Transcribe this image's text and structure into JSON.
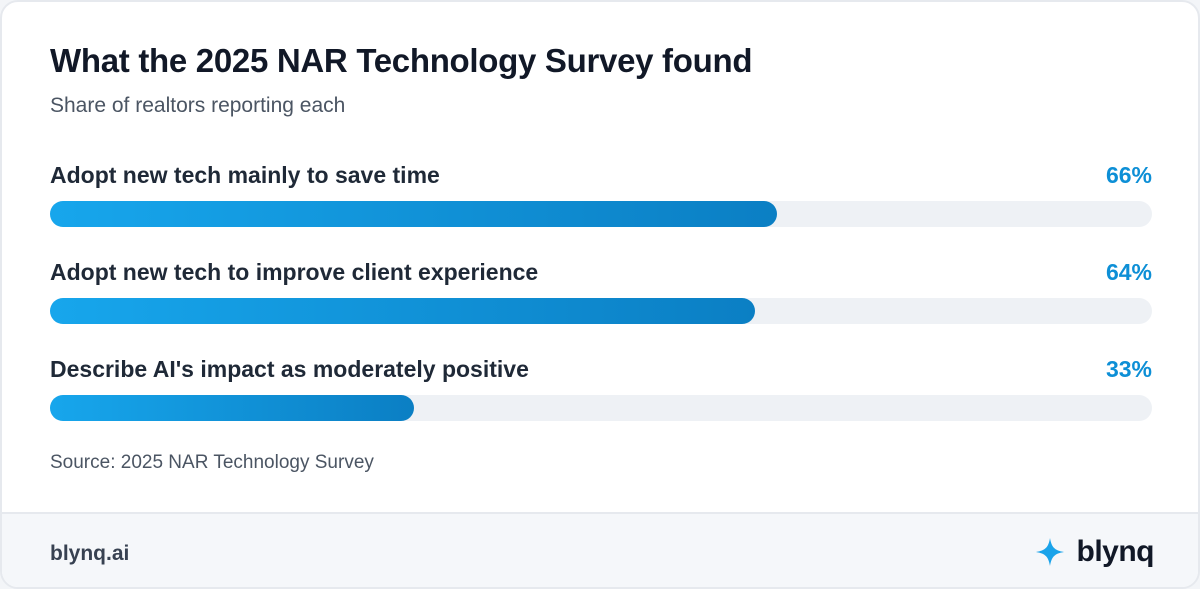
{
  "chart_data": {
    "type": "bar",
    "orientation": "horizontal",
    "title": "What the 2025 NAR Technology Survey found",
    "subtitle": "Share of realtors reporting each",
    "categories": [
      "Adopt new tech mainly to save time",
      "Adopt new tech to improve client experience",
      "Describe AI's impact as moderately positive"
    ],
    "values": [
      66,
      64,
      33
    ],
    "value_labels": [
      "66%",
      "64%",
      "33%"
    ],
    "xlim": [
      0,
      100
    ],
    "source": "Source: 2025 NAR Technology Survey",
    "bar_color": "#0d8fd6",
    "track_color": "#eef1f5",
    "grid": false
  },
  "footer": {
    "url": "blynq.ai",
    "brand_name": "blynq",
    "brand_icon": "sparkle-icon",
    "brand_color": "#1aa3ea"
  }
}
